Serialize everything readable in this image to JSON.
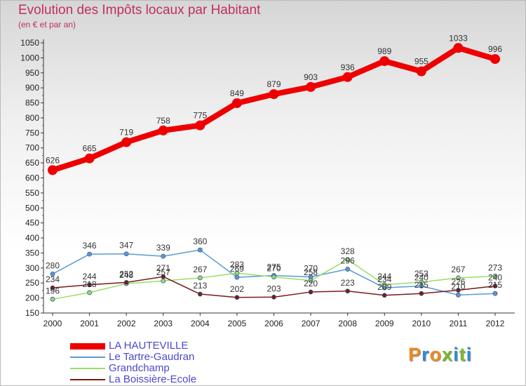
{
  "title": "Evolution des Impôts locaux par Habitant",
  "subtitle": "(en € et par an)",
  "logo": {
    "letters": [
      "P",
      "r",
      "o",
      "x",
      "i",
      "t",
      "i"
    ],
    "colors": [
      "#f08a1c",
      "#2e8bd8",
      "#f08a1c",
      "#7ab82c",
      "#2e8bd8",
      "#7ab82c",
      "#2e8bd8"
    ]
  },
  "chart_data": {
    "type": "line",
    "title": "Evolution des Impôts locaux par Habitant",
    "ylabel": "(en € et par an)",
    "x": [
      "2000",
      "2001",
      "2002",
      "2003",
      "2004",
      "2005",
      "2006",
      "2007",
      "2008",
      "2009",
      "2010",
      "2011",
      "2012"
    ],
    "ylim": [
      150,
      1050
    ],
    "yticks": [
      150,
      200,
      250,
      300,
      350,
      400,
      450,
      500,
      550,
      600,
      650,
      700,
      750,
      800,
      850,
      900,
      950,
      1000,
      1050
    ],
    "grid": false,
    "legend_position": "bottom-left",
    "series": [
      {
        "name": "LA HAUTEVILLE",
        "color": "#ee0000",
        "width": 8,
        "marker": 7,
        "values": [
          626,
          665,
          719,
          758,
          775,
          849,
          879,
          903,
          936,
          989,
          955,
          1033,
          996
        ]
      },
      {
        "name": "Le Tartre-Gaudran",
        "color": "#5a9ad6",
        "width": 1.5,
        "marker": 3,
        "values": [
          280,
          346,
          347,
          339,
          360,
          269,
          275,
          270,
          296,
          234,
          240,
          210,
          215
        ]
      },
      {
        "name": "Grandchamp",
        "color": "#99dd66",
        "width": 1.5,
        "marker": 3,
        "values": [
          196,
          218,
          248,
          257,
          267,
          283,
          270,
          258,
          328,
          244,
          253,
          267,
          273
        ]
      },
      {
        "name": "La Boissière-Ecole",
        "color": "#7a1a1a",
        "width": 1.5,
        "marker": 3,
        "values": [
          234,
          244,
          252,
          271,
          213,
          202,
          203,
          220,
          223,
          209,
          215,
          226,
          240
        ]
      }
    ]
  }
}
